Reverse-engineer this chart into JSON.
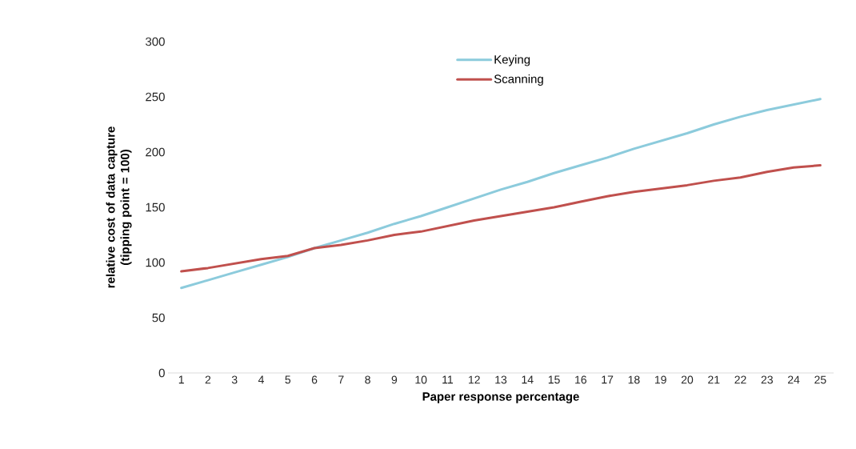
{
  "chart_data": {
    "type": "line",
    "xlabel": "Paper response percentage",
    "ylabel": "relative cost of data capture (tipping point = 100)",
    "categories": [
      "1",
      "2",
      "3",
      "4",
      "5",
      "6",
      "7",
      "8",
      "9",
      "10",
      "11",
      "12",
      "13",
      "14",
      "15",
      "16",
      "17",
      "18",
      "19",
      "20",
      "21",
      "22",
      "23",
      "24",
      "25"
    ],
    "series": [
      {
        "name": "Keying",
        "color": "#8ccbdc",
        "values": [
          77,
          84,
          91,
          98,
          105,
          113,
          120,
          127,
          135,
          142,
          150,
          158,
          166,
          173,
          181,
          188,
          195,
          203,
          210,
          217,
          225,
          232,
          238,
          243,
          248
        ]
      },
      {
        "name": "Scanning",
        "color": "#c0504d",
        "values": [
          92,
          95,
          99,
          103,
          106,
          113,
          116,
          120,
          125,
          128,
          133,
          138,
          142,
          146,
          150,
          155,
          160,
          164,
          167,
          170,
          174,
          177,
          182,
          186,
          188
        ]
      }
    ],
    "ylim": [
      0,
      300
    ],
    "yticks": [
      0,
      50,
      100,
      150,
      200,
      250,
      300
    ],
    "grid": false,
    "legend": "top",
    "marker": "none",
    "line_style": "solid"
  }
}
